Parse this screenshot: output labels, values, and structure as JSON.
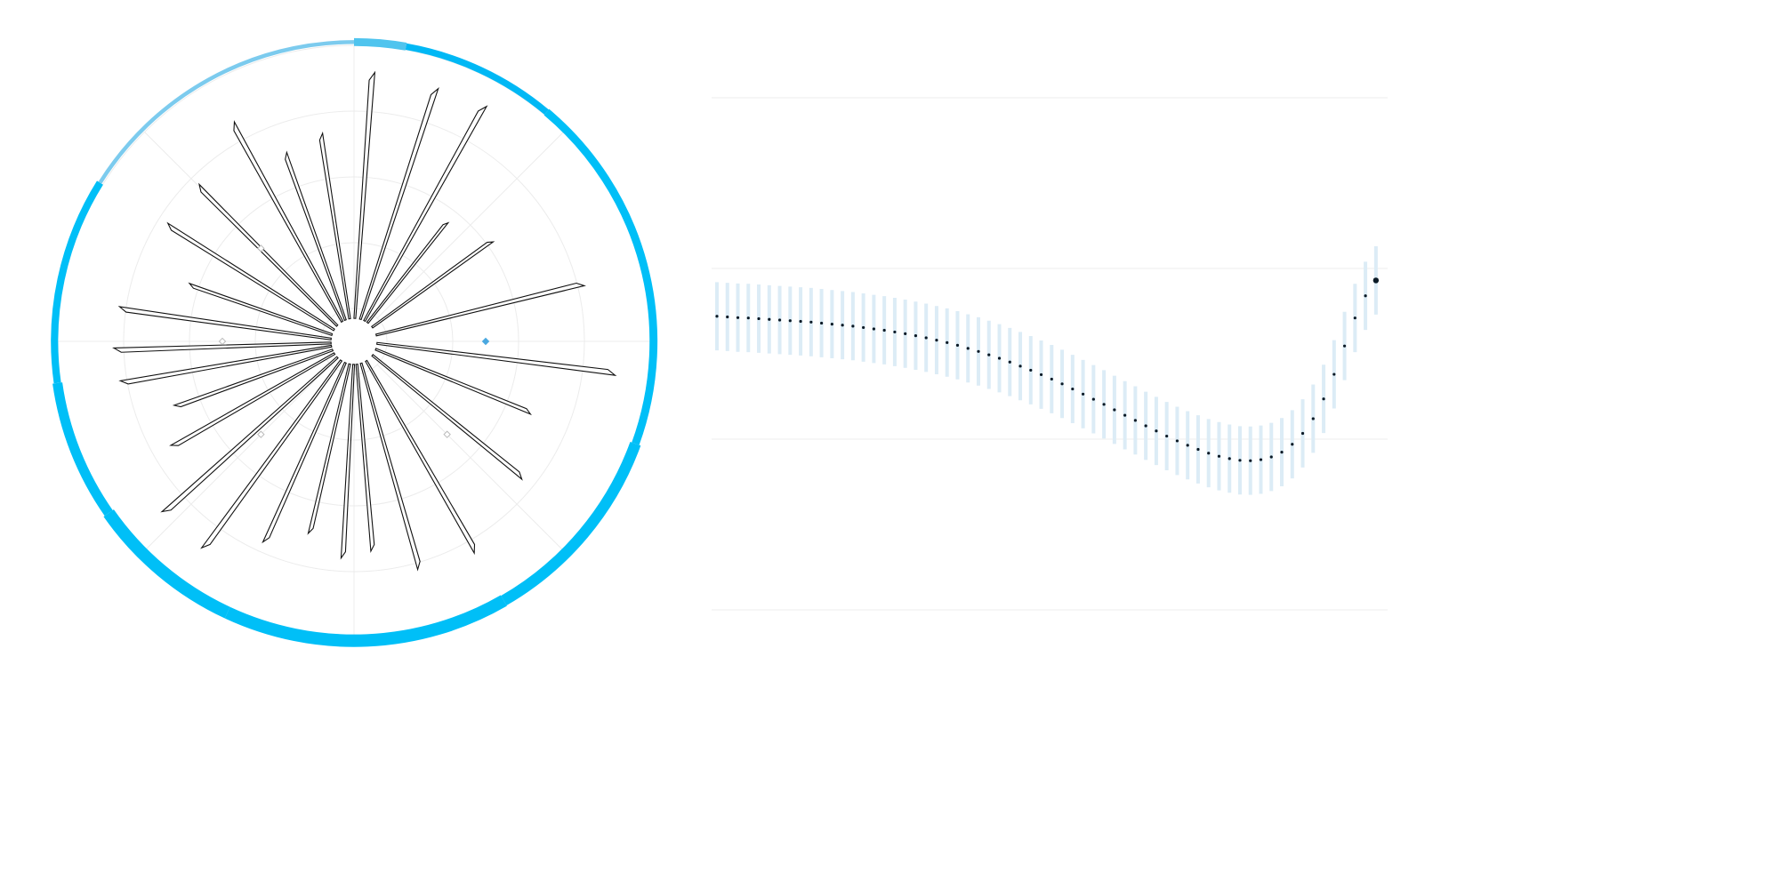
{
  "chart_data": [
    {
      "type": "radial",
      "description_note": "",
      "theta_unit": "degrees",
      "r_range": [
        0,
        5
      ],
      "grid_rings": [
        0.5,
        1.5,
        2.5,
        3.5,
        4.5
      ],
      "grid_spokes_deg": [
        0,
        45,
        90,
        135,
        180,
        225,
        270,
        315
      ],
      "petals": [
        {
          "angle": 2,
          "r": 4.1
        },
        {
          "angle": 16,
          "r": 4.05
        },
        {
          "angle": 27,
          "r": 4.1
        },
        {
          "angle": 36,
          "r": 2.3
        },
        {
          "angle": 52,
          "r": 2.6
        },
        {
          "angle": 74,
          "r": 3.6
        },
        {
          "angle": 95,
          "r": 4.0
        },
        {
          "angle": 110,
          "r": 2.9
        },
        {
          "angle": 127,
          "r": 3.3
        },
        {
          "angle": 148,
          "r": 3.7
        },
        {
          "angle": 162,
          "r": 3.6
        },
        {
          "angle": 173,
          "r": 3.2
        },
        {
          "angle": 181,
          "r": 3.3
        },
        {
          "angle": 191,
          "r": 3.0
        },
        {
          "angle": 202,
          "r": 3.35
        },
        {
          "angle": 214,
          "r": 3.9
        },
        {
          "angle": 226,
          "r": 3.9
        },
        {
          "angle": 238,
          "r": 3.2
        },
        {
          "angle": 248,
          "r": 2.9
        },
        {
          "angle": 258,
          "r": 3.6
        },
        {
          "angle": 266,
          "r": 3.65
        },
        {
          "angle": 276,
          "r": 3.6
        },
        {
          "angle": 287,
          "r": 2.65
        },
        {
          "angle": 300,
          "r": 3.35
        },
        {
          "angle": 313,
          "r": 3.35
        },
        {
          "angle": 329,
          "r": 3.8
        },
        {
          "angle": 338,
          "r": 3.05
        },
        {
          "angle": 349,
          "r": 3.2
        }
      ],
      "outer_band": {
        "r": 4.55,
        "segments": [
          {
            "start": 0,
            "end": 10,
            "thickness": 0.12,
            "color": "#4fc4ee"
          },
          {
            "start": 10,
            "end": 40,
            "thickness": 0.1,
            "color": "#00b8f5"
          },
          {
            "start": 40,
            "end": 110,
            "thickness": 0.12,
            "color": "#00bff7"
          },
          {
            "start": 110,
            "end": 150,
            "thickness": 0.17,
            "color": "#00bff7"
          },
          {
            "start": 150,
            "end": 205,
            "thickness": 0.19,
            "color": "#00bff7"
          },
          {
            "start": 205,
            "end": 235,
            "thickness": 0.19,
            "color": "#00bff7"
          },
          {
            "start": 235,
            "end": 262,
            "thickness": 0.15,
            "color": "#00bff7"
          },
          {
            "start": 262,
            "end": 302,
            "thickness": 0.11,
            "color": "#00bff7"
          },
          {
            "start": 302,
            "end": 360,
            "thickness": 0.06,
            "color": "#7ccbee"
          }
        ]
      },
      "markers": [
        {
          "angle": 90,
          "r": 2.0,
          "color": "#4aa8e0",
          "filled": true
        },
        {
          "angle": 270,
          "r": 2.0,
          "color": "#bbbbbb",
          "filled": false
        },
        {
          "angle": 315,
          "r": 2.0,
          "color": "#bbbbbb",
          "filled": false
        },
        {
          "angle": 225,
          "r": 2.0,
          "color": "#bbbbbb",
          "filled": false
        },
        {
          "angle": 135,
          "r": 2.0,
          "color": "#bbbbbb",
          "filled": false
        }
      ]
    },
    {
      "type": "scatter",
      "x_range": [
        0,
        109
      ],
      "y_range": [
        -0.3,
        1.2
      ],
      "gridlines_y": [
        0.0,
        0.5,
        1.0
      ],
      "error_color": "#dcecf6",
      "marker_color": "#0b1a26",
      "points": [
        {
          "x": 0,
          "y": 0.56,
          "lo": 0.46,
          "hi": 0.66
        },
        {
          "x": 1,
          "y": 0.558,
          "lo": 0.458,
          "hi": 0.658
        },
        {
          "x": 2,
          "y": 0.556,
          "lo": 0.456,
          "hi": 0.656
        },
        {
          "x": 3,
          "y": 0.555,
          "lo": 0.455,
          "hi": 0.655
        },
        {
          "x": 4,
          "y": 0.553,
          "lo": 0.453,
          "hi": 0.653
        },
        {
          "x": 5,
          "y": 0.551,
          "lo": 0.451,
          "hi": 0.651
        },
        {
          "x": 6,
          "y": 0.549,
          "lo": 0.449,
          "hi": 0.649
        },
        {
          "x": 7,
          "y": 0.547,
          "lo": 0.447,
          "hi": 0.647
        },
        {
          "x": 8,
          "y": 0.545,
          "lo": 0.445,
          "hi": 0.645
        },
        {
          "x": 9,
          "y": 0.543,
          "lo": 0.443,
          "hi": 0.643
        },
        {
          "x": 10,
          "y": 0.54,
          "lo": 0.44,
          "hi": 0.64
        },
        {
          "x": 11,
          "y": 0.537,
          "lo": 0.437,
          "hi": 0.637
        },
        {
          "x": 12,
          "y": 0.534,
          "lo": 0.434,
          "hi": 0.634
        },
        {
          "x": 13,
          "y": 0.531,
          "lo": 0.431,
          "hi": 0.631
        },
        {
          "x": 14,
          "y": 0.527,
          "lo": 0.427,
          "hi": 0.627
        },
        {
          "x": 15,
          "y": 0.523,
          "lo": 0.423,
          "hi": 0.623
        },
        {
          "x": 16,
          "y": 0.519,
          "lo": 0.419,
          "hi": 0.619
        },
        {
          "x": 17,
          "y": 0.514,
          "lo": 0.414,
          "hi": 0.614
        },
        {
          "x": 18,
          "y": 0.509,
          "lo": 0.409,
          "hi": 0.609
        },
        {
          "x": 19,
          "y": 0.503,
          "lo": 0.403,
          "hi": 0.603
        },
        {
          "x": 20,
          "y": 0.497,
          "lo": 0.397,
          "hi": 0.597
        },
        {
          "x": 21,
          "y": 0.49,
          "lo": 0.39,
          "hi": 0.59
        },
        {
          "x": 22,
          "y": 0.483,
          "lo": 0.383,
          "hi": 0.583
        },
        {
          "x": 23,
          "y": 0.475,
          "lo": 0.375,
          "hi": 0.575
        },
        {
          "x": 24,
          "y": 0.466,
          "lo": 0.366,
          "hi": 0.566
        },
        {
          "x": 25,
          "y": 0.457,
          "lo": 0.357,
          "hi": 0.557
        },
        {
          "x": 26,
          "y": 0.447,
          "lo": 0.347,
          "hi": 0.547
        },
        {
          "x": 27,
          "y": 0.437,
          "lo": 0.337,
          "hi": 0.537
        },
        {
          "x": 28,
          "y": 0.426,
          "lo": 0.326,
          "hi": 0.526
        },
        {
          "x": 29,
          "y": 0.414,
          "lo": 0.314,
          "hi": 0.514
        },
        {
          "x": 30,
          "y": 0.402,
          "lo": 0.302,
          "hi": 0.502
        },
        {
          "x": 31,
          "y": 0.389,
          "lo": 0.289,
          "hi": 0.489
        },
        {
          "x": 32,
          "y": 0.376,
          "lo": 0.276,
          "hi": 0.476
        },
        {
          "x": 33,
          "y": 0.362,
          "lo": 0.262,
          "hi": 0.462
        },
        {
          "x": 34,
          "y": 0.347,
          "lo": 0.247,
          "hi": 0.447
        },
        {
          "x": 35,
          "y": 0.332,
          "lo": 0.232,
          "hi": 0.432
        },
        {
          "x": 36,
          "y": 0.317,
          "lo": 0.217,
          "hi": 0.417
        },
        {
          "x": 37,
          "y": 0.302,
          "lo": 0.202,
          "hi": 0.402
        },
        {
          "x": 38,
          "y": 0.286,
          "lo": 0.186,
          "hi": 0.386
        },
        {
          "x": 39,
          "y": 0.27,
          "lo": 0.17,
          "hi": 0.37
        },
        {
          "x": 40,
          "y": 0.255,
          "lo": 0.155,
          "hi": 0.355
        },
        {
          "x": 41,
          "y": 0.239,
          "lo": 0.139,
          "hi": 0.339
        },
        {
          "x": 42,
          "y": 0.224,
          "lo": 0.124,
          "hi": 0.324
        },
        {
          "x": 43,
          "y": 0.209,
          "lo": 0.109,
          "hi": 0.309
        },
        {
          "x": 44,
          "y": 0.195,
          "lo": 0.095,
          "hi": 0.295
        },
        {
          "x": 45,
          "y": 0.182,
          "lo": 0.082,
          "hi": 0.282
        },
        {
          "x": 46,
          "y": 0.17,
          "lo": 0.07,
          "hi": 0.27
        },
        {
          "x": 47,
          "y": 0.159,
          "lo": 0.059,
          "hi": 0.259
        },
        {
          "x": 48,
          "y": 0.15,
          "lo": 0.05,
          "hi": 0.25
        },
        {
          "x": 49,
          "y": 0.143,
          "lo": 0.043,
          "hi": 0.243
        },
        {
          "x": 50,
          "y": 0.138,
          "lo": 0.038,
          "hi": 0.238
        },
        {
          "x": 51,
          "y": 0.137,
          "lo": 0.037,
          "hi": 0.237
        },
        {
          "x": 52,
          "y": 0.14,
          "lo": 0.04,
          "hi": 0.24
        },
        {
          "x": 53,
          "y": 0.148,
          "lo": 0.048,
          "hi": 0.248
        },
        {
          "x": 54,
          "y": 0.162,
          "lo": 0.062,
          "hi": 0.262
        },
        {
          "x": 55,
          "y": 0.185,
          "lo": 0.085,
          "hi": 0.285
        },
        {
          "x": 56,
          "y": 0.217,
          "lo": 0.117,
          "hi": 0.317
        },
        {
          "x": 57,
          "y": 0.26,
          "lo": 0.16,
          "hi": 0.36
        },
        {
          "x": 58,
          "y": 0.318,
          "lo": 0.218,
          "hi": 0.418
        },
        {
          "x": 59,
          "y": 0.39,
          "lo": 0.29,
          "hi": 0.49
        },
        {
          "x": 60,
          "y": 0.473,
          "lo": 0.373,
          "hi": 0.573
        },
        {
          "x": 61,
          "y": 0.555,
          "lo": 0.455,
          "hi": 0.655
        },
        {
          "x": 62,
          "y": 0.62,
          "lo": 0.52,
          "hi": 0.72
        },
        {
          "x": 63,
          "y": 0.665,
          "lo": 0.565,
          "hi": 0.765
        }
      ]
    }
  ]
}
